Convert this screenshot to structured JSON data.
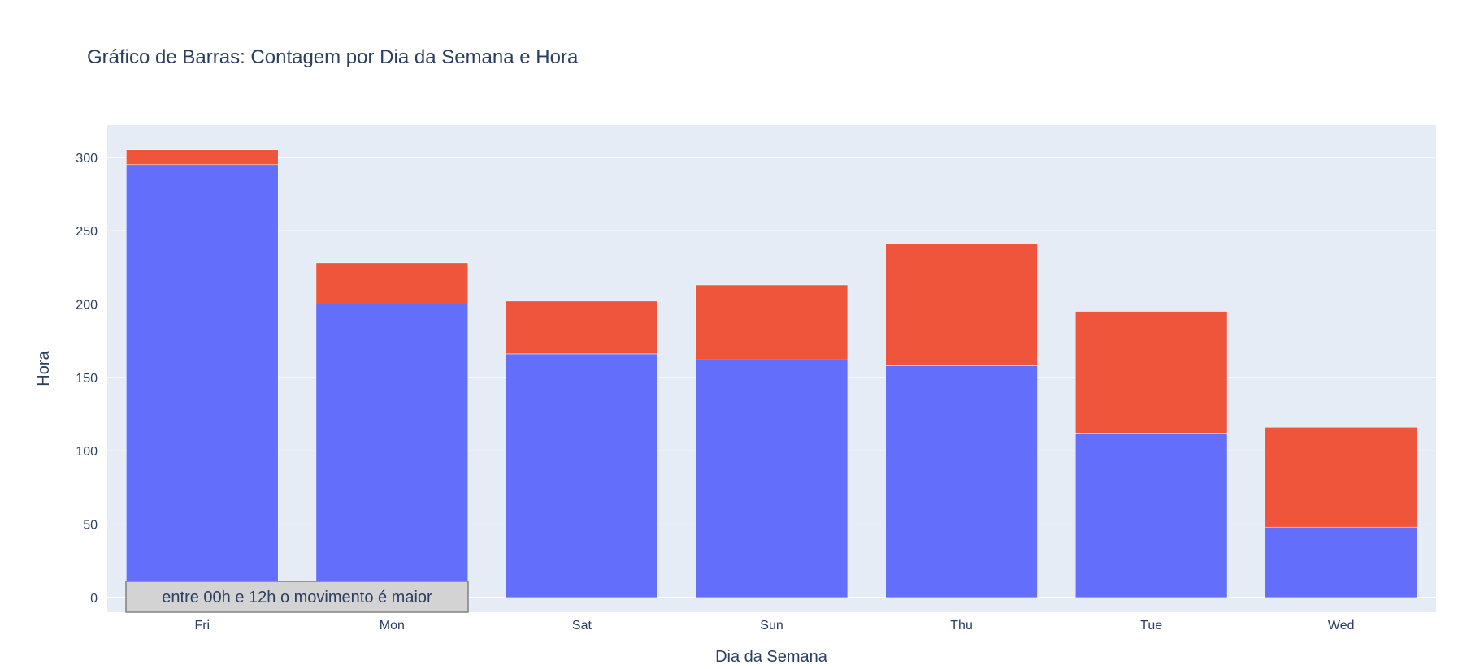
{
  "chart_data": {
    "type": "bar",
    "barmode": "stack",
    "title": "Gráfico de Barras: Contagem por Dia da Semana e Hora",
    "xlabel": "Dia da Semana",
    "ylabel": "Hora",
    "categories": [
      "Fri",
      "Mon",
      "Sat",
      "Sun",
      "Thu",
      "Tue",
      "Wed"
    ],
    "series": [
      {
        "color": "#636efa",
        "values": [
          295,
          200,
          166,
          162,
          158,
          112,
          48
        ]
      },
      {
        "color": "#ef553b",
        "values": [
          10,
          28,
          36,
          51,
          83,
          83,
          68
        ]
      }
    ],
    "yticks": [
      0,
      50,
      100,
      150,
      200,
      250,
      300
    ],
    "ylim": [
      -10,
      322
    ],
    "grid": true,
    "plot_background": "#e5ecf6",
    "annotation": "entre 00h e 12h o movimento é maior"
  }
}
